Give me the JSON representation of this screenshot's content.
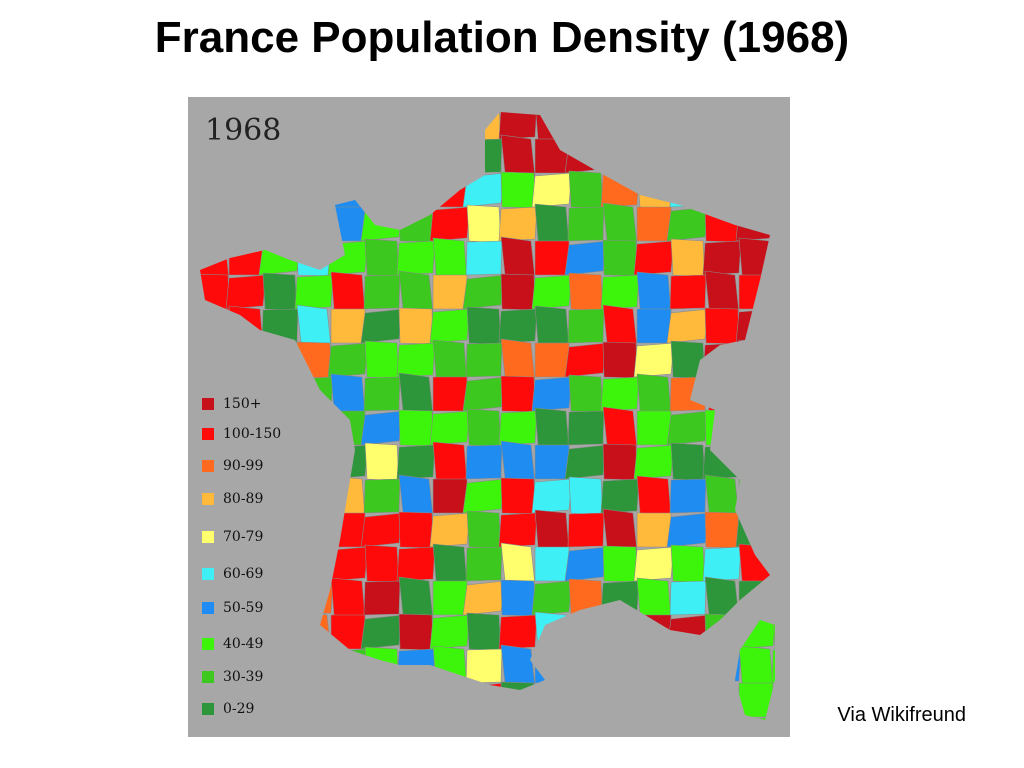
{
  "title": "France Population Density (1968)",
  "map": {
    "year_label": "1968",
    "legend": [
      {
        "label": "150+",
        "color": "#c8101a"
      },
      {
        "label": "100-150",
        "color": "#ff0a0a"
      },
      {
        "label": "90-99",
        "color": "#ff6a1e"
      },
      {
        "label": "80-89",
        "color": "#ffba3c"
      },
      {
        "label": "70-79",
        "color": "#ffff6e"
      },
      {
        "label": "60-69",
        "color": "#3ef0f5"
      },
      {
        "label": "50-59",
        "color": "#1e8cf0"
      },
      {
        "label": "40-49",
        "color": "#3cf50a"
      },
      {
        "label": "30-39",
        "color": "#3cc81e"
      },
      {
        "label": "0-29",
        "color": "#2e963a"
      }
    ]
  },
  "credit": "Via Wikifreund"
}
